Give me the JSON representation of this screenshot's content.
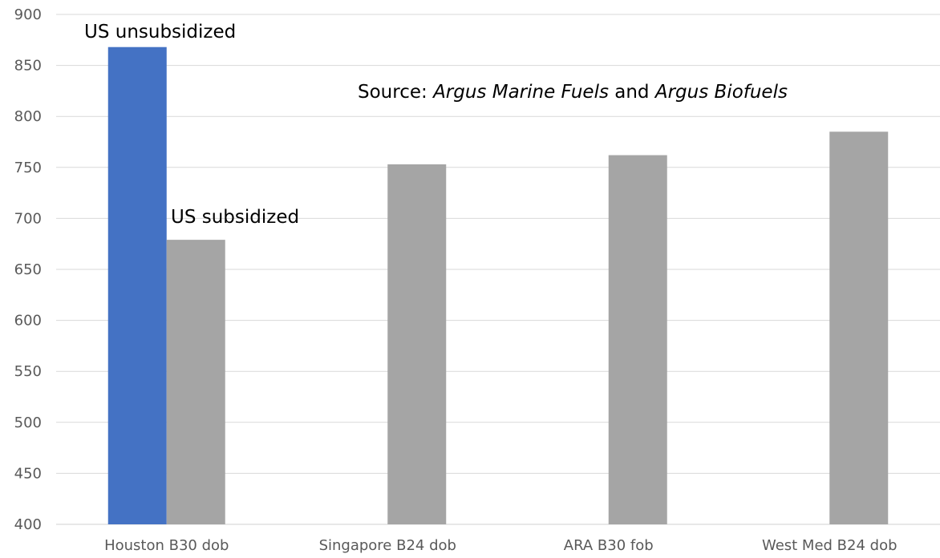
{
  "chart_data": {
    "type": "bar",
    "categories": [
      "Houston B30 dob",
      "Singapore B24 dob",
      "ARA B30 fob",
      "West Med B24 dob"
    ],
    "series": [
      {
        "values": [
          868,
          null,
          null,
          null
        ],
        "color": "#4472c4"
      },
      {
        "values": [
          679,
          753,
          762,
          785
        ],
        "color": "#a5a5a5"
      }
    ],
    "ylim": [
      400,
      900
    ],
    "yticks": [
      400,
      450,
      500,
      550,
      600,
      650,
      700,
      750,
      800,
      850,
      900
    ],
    "grid": true,
    "xlabel": "",
    "ylabel": "",
    "annotations": [
      {
        "text": "US unsubsidized",
        "category": "Houston B30 dob",
        "series": 0
      },
      {
        "text": "US subsidized",
        "category": "Houston B30 dob",
        "series": 1
      }
    ],
    "source_note": {
      "prefix": "Source: ",
      "source1": "Argus Marine Fuels",
      "connector": " and ",
      "source2": "Argus Biofuels"
    }
  }
}
